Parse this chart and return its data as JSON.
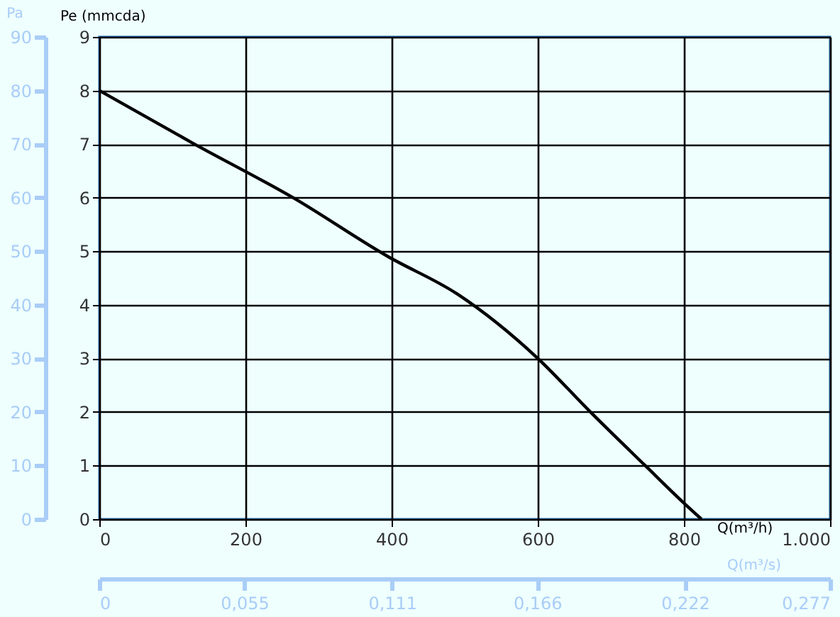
{
  "chart_data": {
    "type": "line",
    "xlabel": "Q(m³/h)",
    "ylabel": "Pe (mmcda)",
    "y2label": "Pa",
    "x2label": "Q(m³/s)",
    "series": [
      {
        "color": "#000000",
        "x": [
          0,
          130,
          265,
          395,
          490,
          600,
          672,
          747,
          800,
          824
        ],
        "values": [
          8,
          7,
          6,
          4.9,
          4.2,
          3,
          2,
          1,
          0.3,
          0
        ]
      }
    ],
    "xlim": [
      0,
      1000
    ],
    "xticks": [
      0,
      200,
      400,
      600,
      800,
      {
        "value": 1000,
        "label": "1.000"
      }
    ],
    "ylim": [
      0,
      9
    ],
    "yticks": [
      0,
      1,
      2,
      3,
      4,
      5,
      6,
      7,
      8,
      9
    ],
    "y2lim": [
      0,
      90
    ],
    "y2ticks": [
      0,
      10,
      20,
      30,
      40,
      50,
      60,
      70,
      80,
      90
    ],
    "x2lim": [
      0,
      0.277
    ],
    "x2ticks": [
      0,
      {
        "value": 0.055,
        "label": "0,055"
      },
      {
        "value": 0.111,
        "label": "0,111"
      },
      {
        "value": 0.166,
        "label": "0,166"
      },
      {
        "value": 0.222,
        "label": "0,222"
      },
      {
        "value": 0.277,
        "label": "0,277"
      }
    ],
    "grid": true,
    "line_style": "solid",
    "marker": "none"
  }
}
